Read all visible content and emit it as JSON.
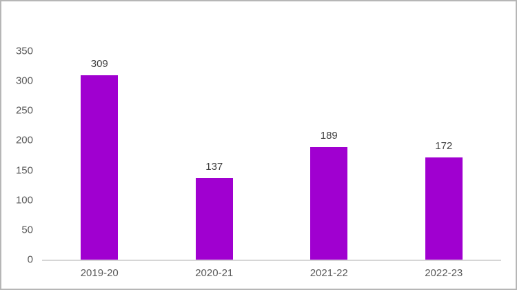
{
  "chart_data": {
    "type": "bar",
    "title": "",
    "categories": [
      "2019-20",
      "2020-21",
      "2021-22",
      "2022-23"
    ],
    "values": [
      309,
      137,
      189,
      172
    ],
    "data_labels": [
      "309",
      "137",
      "189",
      "172"
    ],
    "xlabel": "",
    "ylabel": "",
    "ylim": [
      0,
      350
    ],
    "ytick_step": 50,
    "ytick_labels": [
      "0",
      "50",
      "100",
      "150",
      "200",
      "250",
      "300",
      "350"
    ],
    "grid": false,
    "legend": null,
    "colors": {
      "bar": "#a000d0",
      "axis_line": "#d6d6d6",
      "tick_label": "#595959",
      "data_label": "#404040",
      "frame_border": "#b6b6b6",
      "background": "#ffffff"
    }
  }
}
